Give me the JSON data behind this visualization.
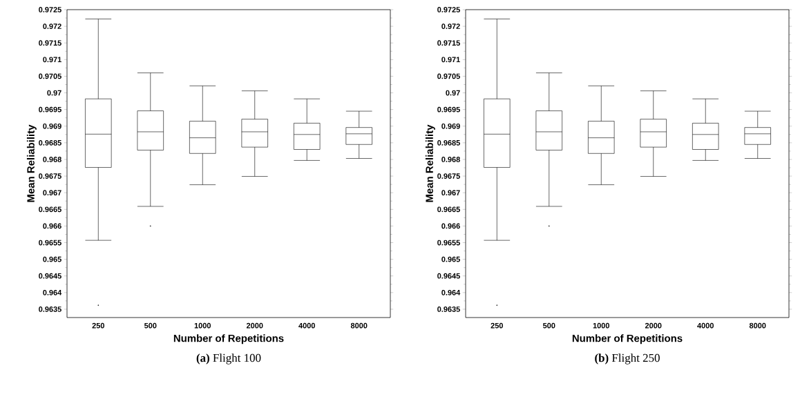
{
  "chart_data": [
    {
      "type": "box",
      "title": "**(a)** Flight 100",
      "xlabel": "Number of Repetitions",
      "ylabel": "Mean Reliability",
      "categories": [
        "250",
        "500",
        "1000",
        "2000",
        "4000",
        "8000"
      ],
      "boxes": [
        {
          "low": 0.96557,
          "q1": 0.96776,
          "median": 0.96876,
          "q3": 0.96982,
          "high": 0.97222,
          "outliers": [
            0.96362
          ]
        },
        {
          "low": 0.96659,
          "q1": 0.96828,
          "median": 0.96883,
          "q3": 0.96946,
          "high": 0.9706,
          "outliers": [
            0.966
          ]
        },
        {
          "low": 0.96724,
          "q1": 0.96818,
          "median": 0.96865,
          "q3": 0.96915,
          "high": 0.97021
        },
        {
          "low": 0.96749,
          "q1": 0.96837,
          "median": 0.96883,
          "q3": 0.96921,
          "high": 0.97006
        },
        {
          "low": 0.96797,
          "q1": 0.9683,
          "median": 0.96875,
          "q3": 0.96909,
          "high": 0.96982
        },
        {
          "low": 0.96803,
          "q1": 0.96845,
          "median": 0.96877,
          "q3": 0.96896,
          "high": 0.96945
        }
      ],
      "ylim": [
        0.96325,
        0.9725
      ],
      "yticks": [
        0.9635,
        0.964,
        0.9645,
        0.965,
        0.9655,
        0.966,
        0.9665,
        0.967,
        0.9675,
        0.968,
        0.9685,
        0.969,
        0.9695,
        0.97,
        0.9705,
        0.971,
        0.9715,
        0.972,
        0.9725
      ]
    },
    {
      "type": "box",
      "title": "**(b)** Flight 250",
      "xlabel": "Number of Repetitions",
      "ylabel": "Mean Reliability",
      "categories": [
        "250",
        "500",
        "1000",
        "2000",
        "4000",
        "8000"
      ],
      "boxes": [
        {
          "low": 0.96557,
          "q1": 0.96776,
          "median": 0.96876,
          "q3": 0.96982,
          "high": 0.97222,
          "outliers": [
            0.96362
          ]
        },
        {
          "low": 0.96659,
          "q1": 0.96828,
          "median": 0.96883,
          "q3": 0.96946,
          "high": 0.9706,
          "outliers": [
            0.966
          ]
        },
        {
          "low": 0.96724,
          "q1": 0.96818,
          "median": 0.96865,
          "q3": 0.96915,
          "high": 0.97021
        },
        {
          "low": 0.96749,
          "q1": 0.96837,
          "median": 0.96883,
          "q3": 0.96921,
          "high": 0.97006
        },
        {
          "low": 0.96797,
          "q1": 0.9683,
          "median": 0.96875,
          "q3": 0.96909,
          "high": 0.96982
        },
        {
          "low": 0.96803,
          "q1": 0.96845,
          "median": 0.96877,
          "q3": 0.96896,
          "high": 0.96945
        }
      ],
      "ylim": [
        0.96325,
        0.9725
      ],
      "yticks": [
        0.9635,
        0.964,
        0.9645,
        0.965,
        0.9655,
        0.966,
        0.9665,
        0.967,
        0.9675,
        0.968,
        0.9685,
        0.969,
        0.9695,
        0.97,
        0.9705,
        0.971,
        0.9715,
        0.972,
        0.9725
      ]
    }
  ]
}
